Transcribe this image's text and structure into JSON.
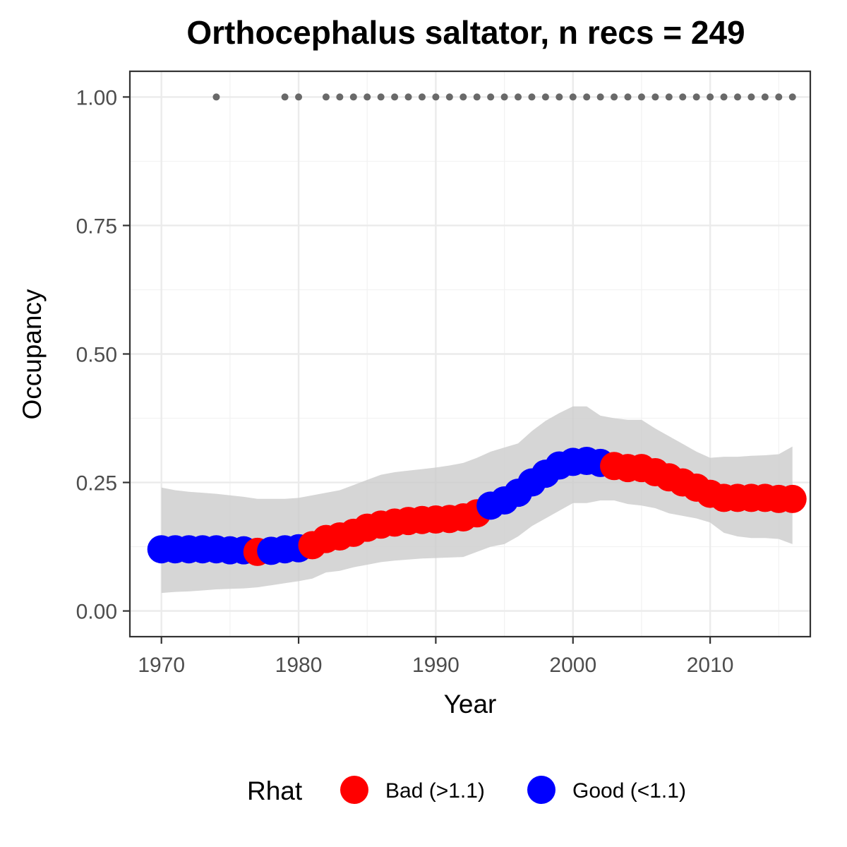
{
  "chart_data": {
    "type": "line",
    "title": "Orthocephalus saltator, n recs = 249",
    "xlabel": "Year",
    "ylabel": "Occupancy",
    "xlim": [
      1967.7,
      2017.3
    ],
    "ylim": [
      -0.05,
      1.05
    ],
    "x_ticks": [
      1970,
      1980,
      1990,
      2000,
      2010
    ],
    "x_tick_labels": [
      "1970",
      "1980",
      "1990",
      "2000",
      "2010"
    ],
    "y_ticks": [
      0.0,
      0.25,
      0.5,
      0.75,
      1.0
    ],
    "y_tick_labels": [
      "0.00",
      "0.25",
      "0.50",
      "0.75",
      "1.00"
    ],
    "grid": true,
    "legend": {
      "title": "Rhat",
      "position": "bottom",
      "entries": [
        {
          "label": "Bad (>1.1)",
          "color": "#ff0000"
        },
        {
          "label": "Good (<1.1)",
          "color": "#0000ff"
        }
      ]
    },
    "series": [
      {
        "x": [
          1970,
          1971,
          1972,
          1973,
          1974,
          1975,
          1976,
          1977,
          1978,
          1979,
          1980,
          1981,
          1982,
          1983,
          1984,
          1985,
          1986,
          1987,
          1988,
          1989,
          1990,
          1991,
          1992,
          1993,
          1994,
          1995,
          1996,
          1997,
          1998,
          1999,
          2000,
          2001,
          2002,
          2003,
          2004,
          2005,
          2006,
          2007,
          2008,
          2009,
          2010,
          2011,
          2012,
          2013,
          2014,
          2015,
          2016
        ],
        "values": [
          0.12,
          0.12,
          0.12,
          0.12,
          0.12,
          0.118,
          0.118,
          0.115,
          0.117,
          0.12,
          0.122,
          0.128,
          0.14,
          0.145,
          0.152,
          0.162,
          0.168,
          0.172,
          0.175,
          0.177,
          0.178,
          0.179,
          0.182,
          0.19,
          0.205,
          0.215,
          0.23,
          0.25,
          0.267,
          0.283,
          0.29,
          0.292,
          0.288,
          0.282,
          0.278,
          0.278,
          0.27,
          0.26,
          0.25,
          0.24,
          0.228,
          0.22,
          0.22,
          0.22,
          0.22,
          0.218,
          0.218
        ],
        "lower": [
          0.035,
          0.037,
          0.038,
          0.04,
          0.042,
          0.043,
          0.044,
          0.046,
          0.05,
          0.054,
          0.058,
          0.063,
          0.075,
          0.078,
          0.085,
          0.09,
          0.095,
          0.098,
          0.1,
          0.102,
          0.103,
          0.104,
          0.105,
          0.115,
          0.125,
          0.13,
          0.145,
          0.165,
          0.18,
          0.195,
          0.21,
          0.21,
          0.215,
          0.215,
          0.208,
          0.205,
          0.2,
          0.19,
          0.185,
          0.18,
          0.172,
          0.152,
          0.145,
          0.142,
          0.142,
          0.14,
          0.13
        ],
        "upper": [
          0.24,
          0.235,
          0.232,
          0.23,
          0.228,
          0.225,
          0.222,
          0.218,
          0.218,
          0.218,
          0.22,
          0.225,
          0.23,
          0.235,
          0.245,
          0.255,
          0.265,
          0.27,
          0.273,
          0.276,
          0.279,
          0.283,
          0.288,
          0.298,
          0.31,
          0.318,
          0.326,
          0.35,
          0.37,
          0.385,
          0.398,
          0.398,
          0.38,
          0.375,
          0.372,
          0.372,
          0.355,
          0.34,
          0.325,
          0.31,
          0.298,
          0.3,
          0.3,
          0.302,
          0.303,
          0.305,
          0.32
        ],
        "rhat": [
          "Good",
          "Good",
          "Good",
          "Good",
          "Good",
          "Good",
          "Good",
          "Bad",
          "Good",
          "Good",
          "Good",
          "Bad",
          "Bad",
          "Bad",
          "Bad",
          "Bad",
          "Bad",
          "Bad",
          "Bad",
          "Bad",
          "Bad",
          "Bad",
          "Bad",
          "Bad",
          "Good",
          "Good",
          "Good",
          "Good",
          "Good",
          "Good",
          "Good",
          "Good",
          "Good",
          "Bad",
          "Bad",
          "Bad",
          "Bad",
          "Bad",
          "Bad",
          "Bad",
          "Bad",
          "Bad",
          "Bad",
          "Bad",
          "Bad",
          "Bad",
          "Bad"
        ]
      },
      {
        "type": "scatter",
        "x": [
          1974,
          1979,
          1980,
          1982,
          1983,
          1984,
          1985,
          1986,
          1987,
          1988,
          1989,
          1990,
          1991,
          1992,
          1993,
          1994,
          1995,
          1996,
          1997,
          1998,
          1999,
          2000,
          2001,
          2002,
          2003,
          2004,
          2005,
          2006,
          2007,
          2008,
          2009,
          2010,
          2011,
          2012,
          2013,
          2014,
          2015,
          2016
        ],
        "values": [
          1,
          1,
          1,
          1,
          1,
          1,
          1,
          1,
          1,
          1,
          1,
          1,
          1,
          1,
          1,
          1,
          1,
          1,
          1,
          1,
          1,
          1,
          1,
          1,
          1,
          1,
          1,
          1,
          1,
          1,
          1,
          1,
          1,
          1,
          1,
          1,
          1,
          1
        ],
        "color": "#696969"
      }
    ]
  }
}
